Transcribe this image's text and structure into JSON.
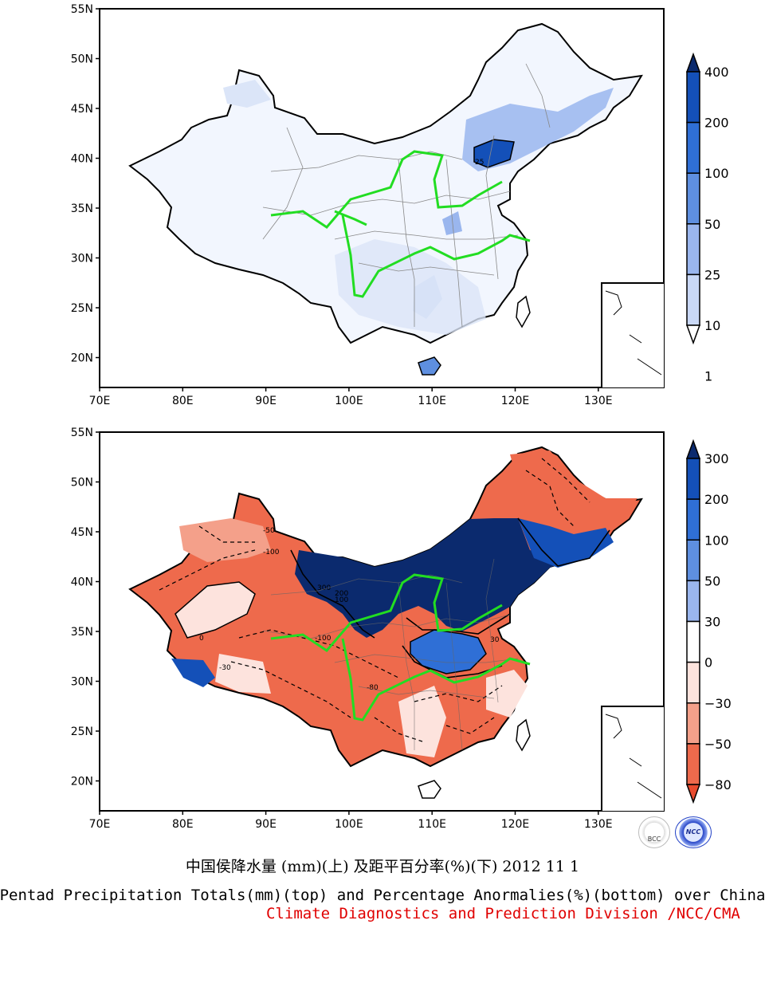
{
  "maps": [
    {
      "id": "totals",
      "lat_ticks": [
        "55N",
        "50N",
        "45N",
        "40N",
        "35N",
        "30N",
        "25N",
        "20N"
      ],
      "lon_ticks": [
        "70E",
        "80E",
        "90E",
        "100E",
        "110E",
        "120E",
        "130E"
      ],
      "colorbar_labels": [
        "400",
        "200",
        "100",
        "50",
        "25",
        "10",
        "1"
      ],
      "colorbar_colors": [
        "#0b2a6e",
        "#1450b8",
        "#2f6fd6",
        "#5e8fe0",
        "#9ab6ee",
        "#c9d8f6",
        "#ffffff"
      ],
      "contour_label": "25"
    },
    {
      "id": "anomalies",
      "lat_ticks": [
        "55N",
        "50N",
        "45N",
        "40N",
        "35N",
        "30N",
        "25N",
        "20N"
      ],
      "lon_ticks": [
        "70E",
        "80E",
        "90E",
        "100E",
        "110E",
        "120E",
        "130E"
      ],
      "colorbar_labels": [
        "300",
        "200",
        "100",
        "50",
        "30",
        "0",
        "−30",
        "−50",
        "−80"
      ],
      "colorbar_colors": [
        "#0b2a6e",
        "#1450b8",
        "#2f6fd6",
        "#5e8fe0",
        "#9ab6ee",
        "#ffffff",
        "#fde3dd",
        "#f4a08a",
        "#ee6a4c",
        "#e84b2e"
      ],
      "contour_labels": [
        "-100",
        "-50",
        "-30",
        "-80",
        "-100",
        "300",
        "200",
        "100",
        "30",
        "0"
      ]
    }
  ],
  "caption": {
    "chinese": "中国侯降水量 (mm)(上) 及距平百分率(%)(下) 2012 11 1",
    "english": "Pentad Precipitation Totals(mm)(top) and Percentage Anormalies(%)(bottom) over China",
    "division": "Climate Diagnostics and Prediction Division /NCC/CMA"
  },
  "logos": [
    "BCC",
    "NCC"
  ],
  "colors": {
    "river": "#22dd22",
    "border": "#000000",
    "province": "#888888"
  }
}
